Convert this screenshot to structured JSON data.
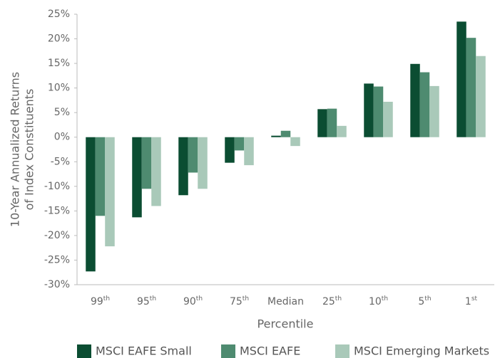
{
  "chart_data": {
    "type": "bar",
    "xlabel": "Percentile",
    "ylabel": [
      "10-Year Annualized Returns",
      "of Index Constituents"
    ],
    "categories": [
      "99th",
      "95th",
      "90th",
      "75th",
      "Median",
      "25th",
      "10th",
      "5th",
      "1st"
    ],
    "series": [
      {
        "name": "MSCI EAFE Small",
        "color": "#0b4d32",
        "values": [
          -27.3,
          -16.3,
          -11.8,
          -5.2,
          0.3,
          5.7,
          10.9,
          14.9,
          23.5
        ]
      },
      {
        "name": "MSCI EAFE",
        "color": "#4e8b70",
        "values": [
          -16,
          -10.5,
          -7.2,
          -2.7,
          1.3,
          5.8,
          10.3,
          13.2,
          20.2
        ]
      },
      {
        "name": "MSCI Emerging Markets",
        "color": "#a9c9b9",
        "values": [
          -22.2,
          -14,
          -10.5,
          -5.7,
          -1.8,
          2.3,
          7.2,
          10.4,
          16.5
        ]
      }
    ],
    "ylim": [
      -30,
      25
    ],
    "yticks": [
      {
        "value": -30,
        "label": "-30%"
      },
      {
        "value": -25,
        "label": "-25%"
      },
      {
        "value": -20,
        "label": "-20%"
      },
      {
        "value": -15,
        "label": "-15%"
      },
      {
        "value": -10,
        "label": "-10%"
      },
      {
        "value": -5,
        "label": "-5%"
      },
      {
        "value": 0,
        "label": "0%"
      },
      {
        "value": 5,
        "label": "5%"
      },
      {
        "value": 10,
        "label": "10%"
      },
      {
        "value": 15,
        "label": "15%"
      },
      {
        "value": 20,
        "label": "20%"
      },
      {
        "value": 25,
        "label": "25%"
      }
    ],
    "legend": "bottom"
  }
}
